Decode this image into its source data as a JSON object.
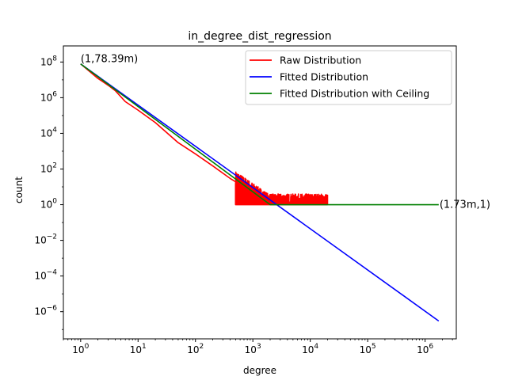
{
  "chart_data": {
    "type": "line",
    "title": "in_degree_dist_regression",
    "xlabel": "degree",
    "ylabel": "count",
    "x_scale": "log",
    "y_scale": "log",
    "xlim": [
      0.5,
      3500000
    ],
    "ylim": [
      3e-08,
      800000000.0
    ],
    "x_ticks": [
      {
        "value": 1,
        "label": "10^0"
      },
      {
        "value": 10,
        "label": "10^1"
      },
      {
        "value": 100,
        "label": "10^2"
      },
      {
        "value": 1000,
        "label": "10^3"
      },
      {
        "value": 10000,
        "label": "10^4"
      },
      {
        "value": 100000,
        "label": "10^5"
      },
      {
        "value": 1000000,
        "label": "10^6"
      }
    ],
    "y_ticks": [
      {
        "value": 1e-06,
        "label": "10^-6"
      },
      {
        "value": 0.0001,
        "label": "10^-4"
      },
      {
        "value": 0.01,
        "label": "10^-2"
      },
      {
        "value": 1,
        "label": "10^0"
      },
      {
        "value": 100,
        "label": "10^2"
      },
      {
        "value": 10000,
        "label": "10^4"
      },
      {
        "value": 1000000,
        "label": "10^6"
      },
      {
        "value": 100000000,
        "label": "10^8"
      }
    ],
    "grid": false,
    "legend_position": "top-right",
    "series": [
      {
        "name": "Raw Distribution",
        "color": "#ff0000",
        "points": [
          [
            1,
            78390000
          ],
          [
            2,
            12000000
          ],
          [
            3,
            5000000
          ],
          [
            4,
            2500000
          ],
          [
            6,
            600000
          ],
          [
            10,
            200000
          ],
          [
            20,
            40000
          ],
          [
            50,
            3000
          ],
          [
            100,
            700
          ],
          [
            200,
            150
          ],
          [
            400,
            30
          ],
          [
            700,
            10
          ]
        ],
        "noisy_tail": {
          "x_start": 500,
          "x_end": 20000,
          "floor": 1
        },
        "spikes": [
          [
            500,
            15
          ],
          [
            700,
            12
          ],
          [
            900,
            8
          ],
          [
            1200,
            6
          ],
          [
            1500,
            5
          ],
          [
            2000,
            4
          ],
          [
            3000,
            4
          ],
          [
            5000,
            3
          ],
          [
            7000,
            3
          ],
          [
            9000,
            3
          ],
          [
            14000,
            3
          ],
          [
            19000,
            3
          ]
        ]
      },
      {
        "name": "Fitted Distribution",
        "color": "#0000ff",
        "points": [
          [
            1,
            78390000
          ],
          [
            1730000,
            3e-07
          ]
        ]
      },
      {
        "name": "Fitted Distribution with Ceiling",
        "color": "#008000",
        "points": [
          [
            1,
            78390000
          ],
          [
            2000,
            1
          ],
          [
            1730000,
            1
          ]
        ]
      }
    ],
    "annotations": [
      {
        "text": "(1,78.39m)",
        "x": 1,
        "y": 78390000
      },
      {
        "text": "(1.73m,1)",
        "x": 1730000,
        "y": 1
      }
    ]
  }
}
